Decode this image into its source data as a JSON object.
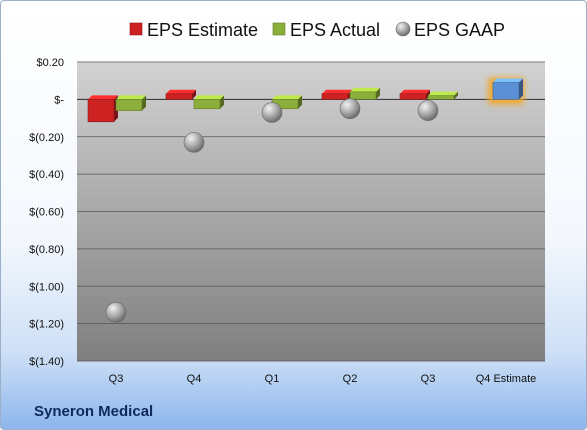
{
  "company": "Syneron Medical",
  "chart_data": {
    "type": "bar",
    "categories": [
      "Q3",
      "Q4",
      "Q1",
      "Q2",
      "Q3",
      "Q4 Estimate"
    ],
    "series": [
      {
        "name": "EPS Estimate",
        "color": "#cc2222",
        "values": [
          -0.12,
          0.03,
          null,
          0.03,
          0.03,
          0.09
        ]
      },
      {
        "name": "EPS Actual",
        "color": "#8cae3a",
        "values": [
          -0.06,
          -0.05,
          -0.05,
          0.04,
          0.02,
          null
        ]
      },
      {
        "name": "EPS GAAP",
        "color": "#9a9a9a",
        "values": [
          -1.14,
          -0.23,
          -0.07,
          -0.05,
          -0.06,
          null
        ]
      }
    ],
    "highlight": {
      "category_index": 5,
      "series_index": 0,
      "color": "#5b8fd6",
      "glow": "#f5a623"
    },
    "yticks": [
      0.2,
      0,
      -0.2,
      -0.4,
      -0.6,
      -0.8,
      -1.0,
      -1.2,
      -1.4
    ],
    "ytick_labels": [
      "$0.20",
      "$-",
      "$(0.20)",
      "$(0.40)",
      "$(0.60)",
      "$(0.80)",
      "$(1.00)",
      "$(1.20)",
      "$(1.40)"
    ],
    "ylim": [
      -1.4,
      0.2
    ],
    "grid": true,
    "legend": "top"
  }
}
